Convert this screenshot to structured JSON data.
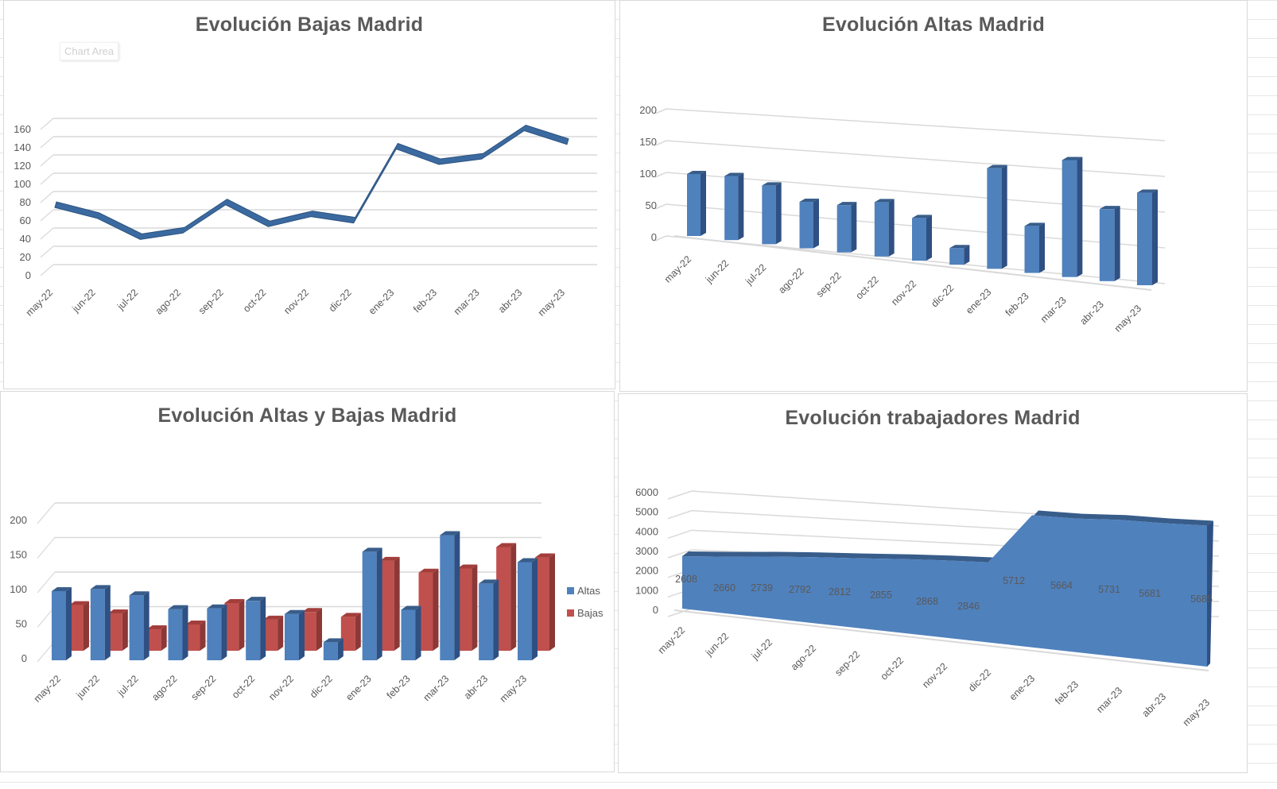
{
  "colors": {
    "altas": "#4f81bd",
    "altas_dark": "#385d8a",
    "altas_side": "#2f5082",
    "bajas": "#c0504d",
    "bajas_dark": "#8c3836",
    "line": "#3b6aa0",
    "grid": "#d9d9d9",
    "text": "#595959"
  },
  "panels": {
    "bajas": {
      "title": "Evolución Bajas Madrid",
      "tooltip": "Chart Area"
    },
    "altas": {
      "title": "Evolución  Altas Madrid"
    },
    "combo": {
      "title": "Evolución Altas y Bajas Madrid",
      "legend": [
        "Altas",
        "Bajas"
      ]
    },
    "trab": {
      "title": "Evolución trabajadores Madrid"
    }
  },
  "chart_data": [
    {
      "type": "line",
      "title": "Evolución Bajas Madrid",
      "categories": [
        "may-22",
        "jun-22",
        "jul-22",
        "ago-22",
        "sep-22",
        "oct-22",
        "nov-22",
        "dic-22",
        "ene-23",
        "feb-23",
        "mar-23",
        "abr-23",
        "may-23"
      ],
      "series": [
        {
          "name": "Bajas",
          "values": [
            66,
            54,
            31,
            38,
            69,
            45,
            56,
            49,
            130,
            113,
            119,
            150,
            135
          ]
        }
      ],
      "xlabel": "",
      "ylabel": "",
      "yticks": [
        0,
        20,
        40,
        60,
        80,
        100,
        120,
        140,
        160
      ],
      "ylim": [
        0,
        160
      ],
      "grid": true,
      "style": "3d-ribbon"
    },
    {
      "type": "bar",
      "title": "Evolución  Altas Madrid",
      "categories": [
        "may-22",
        "jun-22",
        "jul-22",
        "ago-22",
        "sep-22",
        "oct-22",
        "nov-22",
        "dic-22",
        "ene-23",
        "feb-23",
        "mar-23",
        "abr-23",
        "may-23"
      ],
      "series": [
        {
          "name": "Altas",
          "values": [
            100,
            103,
            94,
            74,
            75,
            86,
            67,
            26,
            157,
            73,
            181,
            111,
            142
          ]
        }
      ],
      "xlabel": "",
      "ylabel": "",
      "yticks": [
        0,
        50,
        100,
        150,
        200
      ],
      "ylim": [
        0,
        200
      ],
      "grid": true,
      "style": "3d-perspective-column"
    },
    {
      "type": "bar",
      "title": "Evolución Altas y Bajas Madrid",
      "categories": [
        "may-22",
        "jun-22",
        "jul-22",
        "ago-22",
        "sep-22",
        "oct-22",
        "nov-22",
        "dic-22",
        "ene-23",
        "feb-23",
        "mar-23",
        "abr-23",
        "may-23"
      ],
      "series": [
        {
          "name": "Altas",
          "values": [
            100,
            103,
            94,
            74,
            75,
            86,
            67,
            26,
            157,
            73,
            181,
            111,
            142
          ]
        },
        {
          "name": "Bajas",
          "values": [
            66,
            54,
            31,
            38,
            69,
            45,
            56,
            49,
            130,
            113,
            119,
            150,
            135
          ]
        }
      ],
      "xlabel": "",
      "ylabel": "",
      "yticks": [
        0,
        50,
        100,
        150,
        200
      ],
      "ylim": [
        0,
        200
      ],
      "grid": true,
      "legend_position": "right",
      "style": "3d-column"
    },
    {
      "type": "area",
      "title": "Evolución trabajadores Madrid",
      "categories": [
        "may-22",
        "jun-22",
        "jul-22",
        "ago-22",
        "sep-22",
        "oct-22",
        "nov-22",
        "dic-22",
        "ene-23",
        "feb-23",
        "mar-23",
        "abr-23",
        "may-23"
      ],
      "series": [
        {
          "name": "Trabajadores",
          "values": [
            2608,
            2660,
            2739,
            2792,
            2812,
            2855,
            2868,
            2846,
            5712,
            5664,
            5731,
            5681,
            5685
          ]
        }
      ],
      "data_labels": true,
      "xlabel": "",
      "ylabel": "",
      "yticks": [
        0,
        1000,
        2000,
        3000,
        4000,
        5000,
        6000
      ],
      "ylim": [
        0,
        6000
      ],
      "grid": true,
      "style": "3d-area"
    }
  ]
}
